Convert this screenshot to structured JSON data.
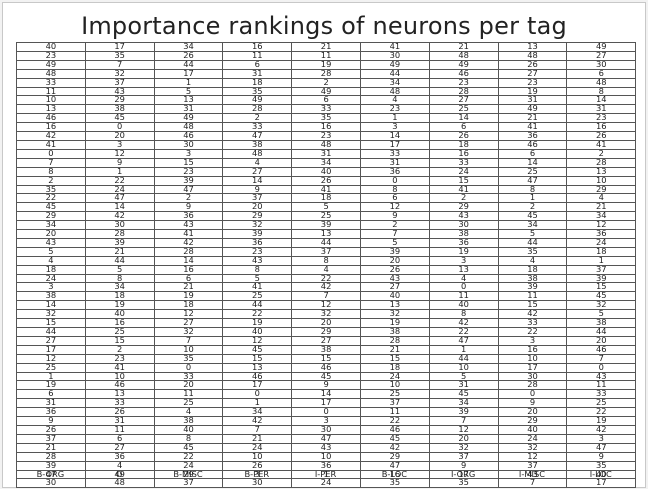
{
  "title": "Importance rankings of neurons per tag",
  "columns": [
    "B-ORG",
    "O",
    "B-MISC",
    "B-PER",
    "I-PER",
    "B-LOC",
    "I-ORG",
    "I-MISC",
    "I-LOC"
  ],
  "rows": [
    [
      40,
      17,
      34,
      16,
      21,
      41,
      21,
      13,
      49
    ],
    [
      23,
      35,
      26,
      11,
      11,
      30,
      48,
      48,
      27
    ],
    [
      49,
      7,
      44,
      6,
      19,
      49,
      49,
      26,
      30
    ],
    [
      48,
      32,
      17,
      31,
      28,
      44,
      46,
      27,
      6
    ],
    [
      33,
      37,
      1,
      18,
      2,
      34,
      23,
      23,
      48
    ],
    [
      11,
      43,
      5,
      35,
      49,
      48,
      28,
      19,
      8
    ],
    [
      10,
      29,
      13,
      49,
      6,
      4,
      27,
      31,
      14
    ],
    [
      13,
      38,
      31,
      28,
      33,
      23,
      25,
      49,
      31
    ],
    [
      46,
      45,
      49,
      2,
      35,
      1,
      14,
      21,
      23
    ],
    [
      16,
      0,
      48,
      33,
      16,
      3,
      6,
      41,
      16
    ],
    [
      42,
      20,
      46,
      47,
      23,
      14,
      26,
      36,
      26
    ],
    [
      41,
      3,
      30,
      38,
      48,
      17,
      18,
      46,
      41
    ],
    [
      0,
      12,
      3,
      48,
      31,
      33,
      16,
      6,
      2
    ],
    [
      7,
      9,
      15,
      4,
      34,
      31,
      33,
      14,
      28
    ],
    [
      8,
      1,
      23,
      27,
      40,
      36,
      24,
      25,
      13
    ],
    [
      2,
      22,
      39,
      14,
      26,
      0,
      15,
      47,
      10
    ],
    [
      35,
      24,
      47,
      9,
      41,
      8,
      41,
      8,
      29
    ],
    [
      22,
      47,
      2,
      37,
      18,
      6,
      2,
      1,
      4
    ],
    [
      45,
      14,
      9,
      20,
      5,
      12,
      29,
      2,
      21
    ],
    [
      29,
      42,
      36,
      29,
      25,
      9,
      43,
      45,
      34
    ],
    [
      34,
      30,
      43,
      32,
      39,
      2,
      30,
      34,
      12
    ],
    [
      20,
      28,
      41,
      39,
      13,
      7,
      38,
      5,
      36
    ],
    [
      43,
      39,
      42,
      36,
      44,
      5,
      36,
      44,
      24
    ],
    [
      5,
      21,
      28,
      23,
      37,
      39,
      19,
      35,
      18
    ],
    [
      4,
      44,
      14,
      43,
      8,
      20,
      3,
      4,
      1
    ],
    [
      18,
      5,
      16,
      8,
      4,
      26,
      13,
      18,
      37
    ],
    [
      24,
      8,
      6,
      5,
      22,
      43,
      4,
      38,
      39
    ],
    [
      3,
      34,
      21,
      41,
      42,
      27,
      0,
      39,
      15
    ],
    [
      38,
      18,
      19,
      25,
      7,
      40,
      11,
      11,
      45
    ],
    [
      14,
      19,
      18,
      44,
      12,
      13,
      40,
      15,
      32
    ],
    [
      32,
      40,
      12,
      22,
      32,
      32,
      8,
      42,
      5
    ],
    [
      15,
      16,
      27,
      19,
      20,
      19,
      42,
      33,
      38
    ],
    [
      44,
      25,
      32,
      40,
      29,
      38,
      22,
      22,
      44
    ],
    [
      27,
      15,
      7,
      12,
      27,
      28,
      47,
      3,
      20
    ],
    [
      17,
      2,
      10,
      45,
      38,
      21,
      1,
      16,
      46
    ],
    [
      12,
      23,
      35,
      15,
      15,
      15,
      44,
      10,
      7
    ],
    [
      25,
      41,
      0,
      13,
      46,
      18,
      10,
      17,
      0
    ],
    [
      1,
      10,
      33,
      46,
      45,
      24,
      5,
      30,
      43
    ],
    [
      19,
      46,
      20,
      17,
      9,
      10,
      31,
      28,
      11
    ],
    [
      6,
      13,
      11,
      0,
      14,
      25,
      45,
      0,
      33
    ],
    [
      31,
      33,
      25,
      1,
      17,
      37,
      34,
      9,
      25
    ],
    [
      36,
      26,
      4,
      34,
      0,
      11,
      39,
      20,
      22
    ],
    [
      9,
      31,
      38,
      42,
      3,
      22,
      7,
      29,
      19
    ],
    [
      26,
      11,
      40,
      7,
      30,
      46,
      12,
      40,
      42
    ],
    [
      37,
      6,
      8,
      21,
      47,
      45,
      20,
      24,
      3
    ],
    [
      21,
      27,
      45,
      24,
      43,
      42,
      32,
      32,
      47
    ],
    [
      28,
      36,
      22,
      10,
      10,
      29,
      37,
      12,
      9
    ],
    [
      39,
      4,
      24,
      26,
      36,
      47,
      9,
      37,
      35
    ],
    [
      47,
      49,
      29,
      3,
      1,
      16,
      17,
      43,
      40
    ],
    [
      30,
      48,
      37,
      30,
      24,
      35,
      35,
      7,
      17
    ]
  ]
}
